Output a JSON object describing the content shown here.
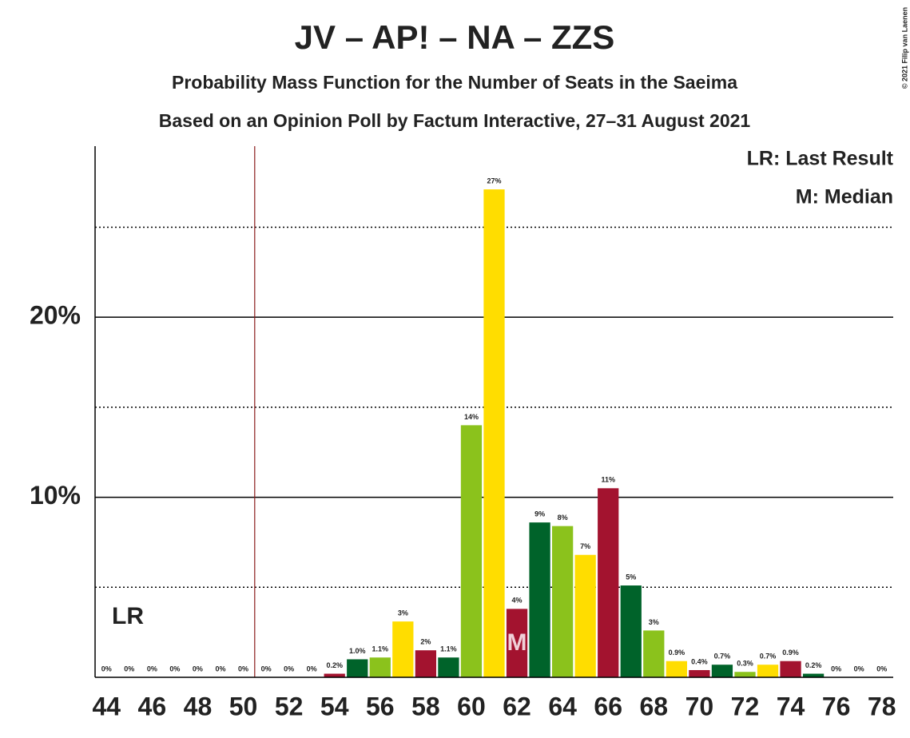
{
  "chart_data": {
    "type": "bar",
    "title": "JV – AP! – NA – ZZS",
    "subtitle": "Probability Mass Function for the Number of Seats in the Saeima",
    "subtitle2": "Based on an Opinion Poll by Factum Interactive, 27–31 August 2021",
    "copyright": "© 2021 Filip van Laenen",
    "legend": [
      "LR: Last Result",
      "M: Median"
    ],
    "lr_label": "LR",
    "last_result": 51,
    "median_label": "M",
    "median": 62,
    "categories": [
      44,
      null,
      46,
      null,
      48,
      null,
      50,
      null,
      52,
      null,
      54,
      null,
      56,
      null,
      58,
      null,
      60,
      null,
      62,
      null,
      64,
      null,
      66,
      null,
      68,
      null,
      70,
      null,
      72,
      null,
      74,
      null,
      76,
      null,
      78
    ],
    "values": [
      0,
      0,
      0,
      0,
      0,
      0,
      0,
      0,
      0,
      0,
      0.2,
      1.0,
      1.1,
      3.1,
      1.5,
      1.1,
      14.0,
      27.1,
      3.8,
      8.6,
      8.4,
      6.8,
      10.5,
      5.1,
      2.6,
      0.9,
      0.4,
      0.7,
      0.3,
      0.7,
      0.9,
      0.2,
      0,
      0,
      0
    ],
    "value_labels": [
      "0%",
      "0%",
      "0%",
      "0%",
      "0%",
      "0%",
      "0%",
      "0%",
      "0%",
      "0%",
      "0.2%",
      "1.0%",
      "1.1%",
      "3%",
      "2%",
      "1.1%",
      "14%",
      "27%",
      "4%",
      "9%",
      "8%",
      "7%",
      "11%",
      "5%",
      "3%",
      "0.9%",
      "0.4%",
      "0.7%",
      "0.3%",
      "0.7%",
      "0.9%",
      "0.2%",
      "0%",
      "0%",
      "0%"
    ],
    "colors": [
      "#8BC21C",
      "#FFDD00",
      "#A3132F",
      "#00632A",
      "#8BC21C",
      "#FFDD00",
      "#A3132F",
      "#00632A",
      "#8BC21C",
      "#FFDD00",
      "#A3132F",
      "#00632A",
      "#8BC21C",
      "#FFDD00",
      "#A3132F",
      "#00632A",
      "#8BC21C",
      "#FFDD00",
      "#A3132F",
      "#00632A",
      "#8BC21C",
      "#FFDD00",
      "#A3132F",
      "#00632A",
      "#8BC21C",
      "#FFDD00",
      "#A3132F",
      "#00632A",
      "#8BC21C",
      "#FFDD00",
      "#A3132F",
      "#00632A",
      "#8BC21C",
      "#FFDD00",
      "#A3132F"
    ],
    "ylim": [
      0,
      29.5
    ],
    "yticks": [
      {
        "value": 10,
        "label": "10%"
      },
      {
        "value": 20,
        "label": "20%"
      }
    ],
    "minor_yticks": [
      5,
      15,
      25
    ],
    "grid": true
  }
}
